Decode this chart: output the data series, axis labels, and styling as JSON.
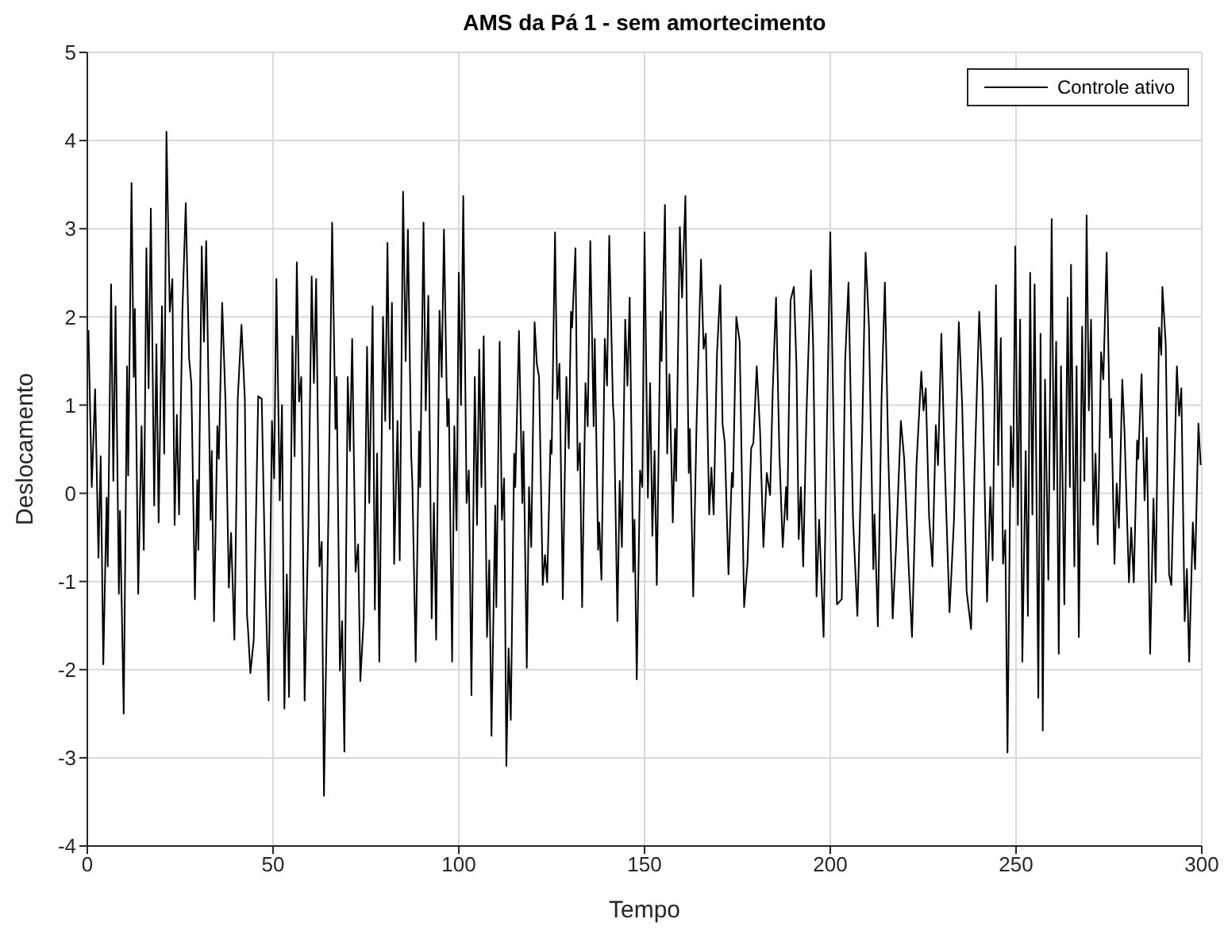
{
  "chart_data": {
    "type": "line",
    "title": "AMS da Pá 1 - sem amortecimento",
    "xlabel": "Tempo",
    "ylabel": "Deslocamento",
    "xlim": [
      0,
      300
    ],
    "xticks": [
      0,
      50,
      100,
      150,
      200,
      250,
      300
    ],
    "ylim": [
      -4,
      5
    ],
    "yticks": [
      -4,
      -3,
      -2,
      -1,
      0,
      1,
      2,
      3,
      4,
      5
    ],
    "grid": true,
    "legend": "top right",
    "marker": "none",
    "line_style": "solid",
    "x": [
      0.3,
      1.2,
      2.1,
      3,
      3.6,
      4.3,
      5.2,
      5.5,
      6.4,
      7,
      7.6,
      8.5,
      8.8,
      9.8,
      10.7,
      11,
      11.9,
      12.5,
      12.8,
      13.7,
      14.6,
      15.2,
      15.9,
      16.5,
      17.1,
      18,
      18.6,
      19.2,
      20.1,
      20.7,
      21.3,
      22.2,
      22.9,
      23.5,
      24.1,
      24.7,
      25.6,
      26.5,
      27.4,
      28,
      28.96,
      29.6,
      29.9,
      30.8,
      31.4,
      32,
      33.2,
      33.5,
      34.1,
      35,
      35.4,
      36.3,
      37.2,
      38.1,
      38.7,
      39.6,
      40.5,
      41.5,
      42.4,
      43,
      43.3,
      43.9,
      44.8,
      46,
      46.95,
      47.9,
      48.8,
      49.7,
      50.3,
      50.9,
      51.8,
      52.4,
      53.05,
      53.7,
      54.3,
      55.2,
      55.8,
      56.4,
      57,
      57.6,
      58.5,
      59.5,
      60.4,
      61,
      61.6,
      62.5,
      63.1,
      63.7,
      64.9,
      65.9,
      66.8,
      67.1,
      68,
      68.6,
      69.2,
      70.1,
      70.7,
      71.3,
      72.2,
      72.9,
      73.5,
      74.4,
      75.3,
      75.9,
      76.8,
      77.4,
      78,
      78.6,
      79.6,
      80.2,
      80.8,
      81.4,
      82,
      82.6,
      83.5,
      84.1,
      85,
      85.7,
      86.3,
      87.2,
      87.5,
      88.4,
      89.3,
      89.6,
      90.5,
      91.1,
      91.8,
      92.7,
      93.3,
      93.9,
      94.8,
      95.4,
      96,
      96.9,
      97.3,
      98.2,
      98.8,
      99.4,
      100,
      100.6,
      101.2,
      102.1,
      102.7,
      103.4,
      104.3,
      104.9,
      105.5,
      106.1,
      106.7,
      107.6,
      108.2,
      108.8,
      109.8,
      110.1,
      111,
      111.6,
      112.2,
      112.8,
      113.4,
      114,
      114.9,
      115.2,
      116.2,
      117.1,
      117.4,
      118.3,
      118.9,
      119.5,
      120.4,
      121,
      121.6,
      122.6,
      123.2,
      123.8,
      124.7,
      125,
      125.9,
      126.5,
      127.1,
      128,
      128.96,
      129.6,
      130.2,
      130.5,
      131.4,
      132,
      132.6,
      133.2,
      134.1,
      134.7,
      135.4,
      136.3,
      136.6,
      137.5,
      137.8,
      138.4,
      139.3,
      139.9,
      140.5,
      141.5,
      141.8,
      142.7,
      143.3,
      143.9,
      144.8,
      145.4,
      146,
      146.95,
      147.3,
      147.9,
      148.8,
      149.4,
      150,
      150.9,
      151.5,
      152.1,
      152.7,
      153.3,
      154.3,
      154.6,
      155.5,
      156.1,
      156.7,
      157.6,
      158.2,
      158.5,
      159.5,
      160.1,
      161,
      161.9,
      162.2,
      163.1,
      164,
      165.2,
      165.9,
      166.5,
      167.4,
      168,
      168.6,
      169.5,
      170.4,
      171,
      171.6,
      172.6,
      173.5,
      173.8,
      174.7,
      175.6,
      176.8,
      177.7,
      178.7,
      179.3,
      180.2,
      181.1,
      182,
      182.9,
      183.8,
      184.5,
      185.4,
      186.3,
      187.2,
      188.1,
      188.4,
      189.3,
      190.2,
      190.9,
      191.5,
      192.1,
      192.7,
      193.6,
      194.8,
      195.4,
      196.3,
      197,
      198.2,
      199.1,
      200,
      200.9,
      201.8,
      203.1,
      204,
      204.9,
      206.1,
      207.3,
      208.6,
      209.5,
      210.4,
      211.6,
      211.9,
      212.8,
      213.8,
      214.7,
      215.6,
      216.8,
      217.7,
      219,
      219.9,
      221.1,
      222,
      223.2,
      224.5,
      225.1,
      225.7,
      226.6,
      227.5,
      228.4,
      229,
      229.9,
      230.8,
      232.1,
      233.3,
      234.6,
      235.5,
      236.7,
      237.9,
      238.8,
      240.1,
      241,
      242.2,
      243.1,
      243.7,
      244.6,
      245.2,
      245.9,
      246.5,
      247.1,
      247.7,
      248.6,
      249.2,
      249.8,
      250.5,
      251.1,
      251.7,
      252.6,
      253.2,
      253.8,
      254.4,
      255,
      256,
      256.6,
      257.2,
      257.8,
      258.7,
      259.6,
      260.2,
      260.8,
      261.5,
      262.1,
      263,
      263.9,
      264.5,
      264.8,
      265.7,
      266.3,
      266.9,
      267.8,
      268.4,
      269,
      269.6,
      270.2,
      270.8,
      271.4,
      272,
      272.9,
      273.5,
      274.4,
      275.3,
      275.6,
      276.5,
      277.1,
      277.7,
      278.6,
      279.2,
      280.4,
      281,
      281.7,
      282.6,
      282.9,
      283.8,
      284.6,
      285.2,
      286.1,
      287,
      287.6,
      288.5,
      289.1,
      289.4,
      290.3,
      291.2,
      291.8,
      292.7,
      293.3,
      293.9,
      294.5,
      295.4,
      296,
      296.6,
      297.6,
      298.2,
      299.1,
      299.7
    ],
    "series": [
      {
        "name": "Controle ativo",
        "color": "#000000",
        "values": [
          1.85,
          0.07,
          1.18,
          -0.73,
          0.42,
          -1.94,
          -0.05,
          -0.83,
          2.37,
          0.14,
          2.12,
          -1.14,
          -0.2,
          -2.5,
          1.44,
          0.2,
          3.52,
          1.32,
          2.09,
          -1.14,
          0.76,
          -0.64,
          2.78,
          1.19,
          3.23,
          -0.14,
          1.69,
          -0.33,
          2.12,
          0.45,
          4.1,
          2.06,
          2.43,
          -0.36,
          0.89,
          -0.24,
          2.07,
          3.29,
          1.53,
          1.25,
          -1.2,
          0.15,
          -0.64,
          2.8,
          1.72,
          2.86,
          -0.3,
          0.48,
          -1.45,
          0.76,
          0.39,
          2.16,
          1.04,
          -1.07,
          -0.45,
          -1.66,
          1.07,
          1.91,
          1.07,
          -1.39,
          -1.57,
          -2.04,
          -1.66,
          1.1,
          1.07,
          -0.95,
          -2.35,
          0.82,
          0.17,
          2.43,
          -0.08,
          1.0,
          -2.44,
          -0.92,
          -2.31,
          1.78,
          0.42,
          2.62,
          1.04,
          1.32,
          -2.35,
          -0.36,
          2.46,
          1.25,
          2.43,
          -0.83,
          -0.55,
          -3.43,
          -0.24,
          3.07,
          0.73,
          1.32,
          -2.01,
          -1.45,
          -2.93,
          1.32,
          0.48,
          1.75,
          -0.89,
          -0.58,
          -2.13,
          -1.42,
          1.66,
          -0.11,
          2.12,
          -1.32,
          0.45,
          -1.91,
          2.0,
          0.82,
          2.84,
          0.73,
          2.16,
          -0.8,
          0.82,
          -0.76,
          3.42,
          1.5,
          2.99,
          0.42,
          0.11,
          -1.91,
          0.7,
          0.07,
          3.07,
          0.94,
          2.24,
          -1.42,
          -0.11,
          -1.66,
          2.07,
          1.32,
          2.99,
          0.76,
          1.07,
          -1.91,
          0.76,
          -0.42,
          2.5,
          1.0,
          3.37,
          -0.11,
          0.26,
          -2.29,
          1.32,
          -0.36,
          1.63,
          0.07,
          1.78,
          -1.63,
          -0.76,
          -2.75,
          -0.14,
          -1.29,
          1.72,
          -0.3,
          0.17,
          -3.09,
          -1.76,
          -2.57,
          0.45,
          0.07,
          1.84,
          -0.11,
          0.7,
          -1.98,
          0.07,
          -0.61,
          1.94,
          1.47,
          1.32,
          -1.04,
          -0.7,
          -1.01,
          0.6,
          0.45,
          2.96,
          1.07,
          1.47,
          -1.2,
          1.32,
          0.51,
          2.06,
          1.88,
          2.78,
          0.26,
          0.57,
          -1.29,
          1.25,
          0.76,
          2.86,
          0.76,
          1.75,
          -0.64,
          -0.33,
          -0.98,
          1.75,
          1.22,
          2.92,
          1.0,
          0.82,
          -1.45,
          0.14,
          -0.61,
          1.97,
          1.22,
          2.22,
          -0.89,
          -0.3,
          -2.11,
          0.26,
          0.07,
          2.96,
          -0.05,
          1.25,
          -0.48,
          0.48,
          -1.04,
          2.06,
          1.5,
          3.27,
          0.45,
          1.35,
          -0.33,
          0.73,
          0.14,
          3.02,
          2.22,
          3.37,
          0.23,
          0.73,
          -1.17,
          0.79,
          2.65,
          1.64,
          1.81,
          -0.24,
          0.29,
          -0.24,
          1.57,
          2.36,
          0.79,
          0.57,
          -0.92,
          0.23,
          0.07,
          2.0,
          1.72,
          -1.29,
          -0.8,
          0.51,
          0.57,
          1.44,
          0.7,
          -0.61,
          0.23,
          -0.02,
          1.16,
          2.22,
          0.45,
          -0.61,
          0.07,
          -0.3,
          2.19,
          2.34,
          1.44,
          -0.52,
          0.07,
          -0.83,
          0.91,
          2.53,
          1.66,
          -1.17,
          -0.3,
          -1.63,
          0.76,
          2.96,
          0.7,
          -1.26,
          -1.2,
          1.5,
          2.39,
          -0.27,
          -1.39,
          0.7,
          2.73,
          1.91,
          -0.86,
          -0.24,
          -1.51,
          1.07,
          2.39,
          0.45,
          -1.42,
          -0.61,
          0.82,
          0.39,
          -0.83,
          -1.63,
          0.32,
          1.38,
          0.94,
          1.19,
          -0.27,
          -0.83,
          0.77,
          0.32,
          1.81,
          0.35,
          -1.35,
          -0.3,
          1.94,
          1.0,
          -1.11,
          -1.54,
          0.2,
          2.06,
          1.19,
          -1.23,
          0.07,
          -0.76,
          2.36,
          0.32,
          1.76,
          -0.8,
          -0.42,
          -2.94,
          0.76,
          0.07,
          2.8,
          -0.36,
          1.97,
          -1.91,
          0.48,
          -1.39,
          2.5,
          -0.24,
          2.37,
          -2.32,
          1.81,
          -2.69,
          1.29,
          -0.98,
          3.11,
          0.04,
          1.72,
          -1.82,
          1.44,
          -1.26,
          2.22,
          0.07,
          2.59,
          -0.83,
          1.44,
          -1.63,
          1.89,
          0.14,
          3.15,
          0.94,
          1.97,
          -0.36,
          0.45,
          -0.58,
          1.6,
          1.29,
          2.73,
          0.63,
          1.07,
          -0.8,
          0.11,
          -0.39,
          1.29,
          0.7,
          -1.01,
          -0.39,
          -1.01,
          0.6,
          0.39,
          1.35,
          -0.08,
          0.63,
          -1.82,
          -0.06,
          -1.01,
          1.88,
          1.57,
          2.34,
          1.69,
          -0.92,
          -1.04,
          0.45,
          1.44,
          0.88,
          1.19,
          -1.45,
          -0.86,
          -1.91,
          -0.33,
          -0.86,
          0.79,
          0.32
        ]
      }
    ]
  }
}
